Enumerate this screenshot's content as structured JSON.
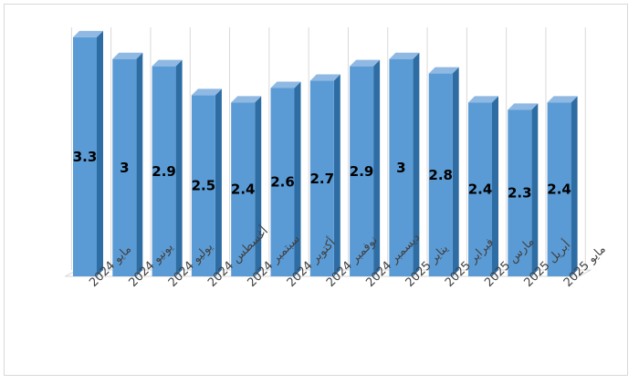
{
  "chart_data": {
    "type": "bar",
    "style": "3d-column",
    "categories": [
      "مايو 2024",
      "يونيو 2024",
      "يوليو 2024",
      "أغسطس 2024",
      "سبتمبر 2024",
      "أكتوبر 2024",
      "نوفمبر 2024",
      "ديسمبر 2024",
      "يناير 2025",
      "فبراير 2025",
      "مارس 2025",
      "أبريل 2025",
      "مايو 2025"
    ],
    "values": [
      3.3,
      3,
      2.9,
      2.5,
      2.4,
      2.6,
      2.7,
      2.9,
      3,
      2.8,
      2.4,
      2.3,
      2.4
    ],
    "title": "",
    "xlabel": "",
    "ylabel": "",
    "ylim": [
      0,
      3.5
    ],
    "grid": true,
    "legend": "none",
    "colors": {
      "bar_front": "#5b9bd5",
      "bar_side": "#2e6da4",
      "bar_top": "#8fb9e3",
      "grid": "#d9d9d9"
    }
  }
}
